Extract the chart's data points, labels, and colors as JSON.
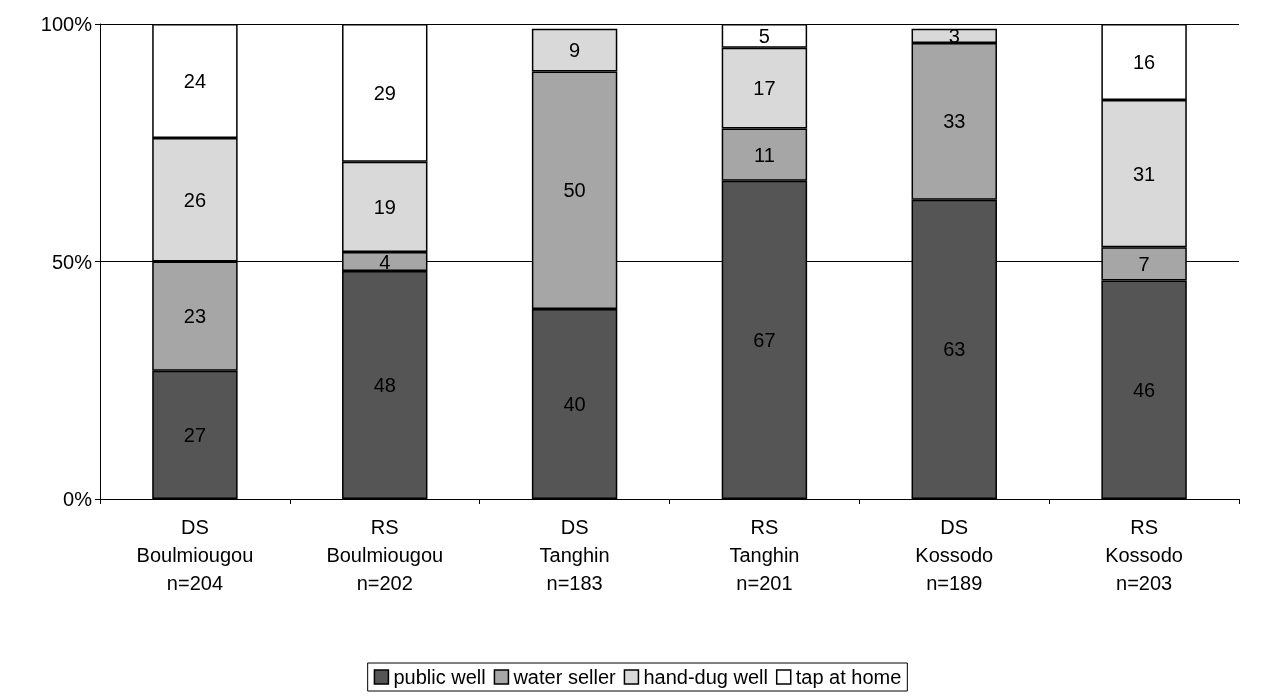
{
  "chart_data": {
    "type": "bar",
    "stacked": true,
    "categories": [
      "DS\nBoulmiougou\nn=204",
      "RS\nBoulmiougou\nn=202",
      "DS\nTanghin\nn=183",
      "RS\nTanghin\nn=201",
      "DS\nKossodo\nn=189",
      "RS\nKossodo\nn=203"
    ],
    "series": [
      {
        "name": "public well",
        "color": "#555555",
        "values": [
          27,
          48,
          40,
          67,
          63,
          46
        ],
        "value_labels": [
          "27",
          "48",
          "40",
          "67",
          "63",
          "46"
        ]
      },
      {
        "name": "water seller",
        "color": "#a6a6a6",
        "values": [
          23,
          4,
          50,
          11,
          33,
          7
        ],
        "value_labels": [
          "23",
          "4",
          "50",
          "11",
          "33",
          "7"
        ]
      },
      {
        "name": "hand-dug well",
        "color": "#d9d9d9",
        "values": [
          26,
          19,
          9,
          17,
          3,
          31
        ],
        "value_labels": [
          "26",
          "19",
          "9",
          "17",
          "3",
          "31"
        ]
      },
      {
        "name": "tap at home",
        "color": "#ffffff",
        "values": [
          24,
          29,
          null,
          5,
          null,
          16
        ],
        "value_labels": [
          "24",
          "29",
          null,
          "5",
          null,
          "16"
        ]
      }
    ],
    "ylim": [
      0,
      100
    ],
    "yticks": [
      {
        "value": 0,
        "label": "0%"
      },
      {
        "value": 50,
        "label": "50%"
      },
      {
        "value": 100,
        "label": "100%"
      }
    ],
    "grid": "y",
    "legend": "bottom"
  }
}
